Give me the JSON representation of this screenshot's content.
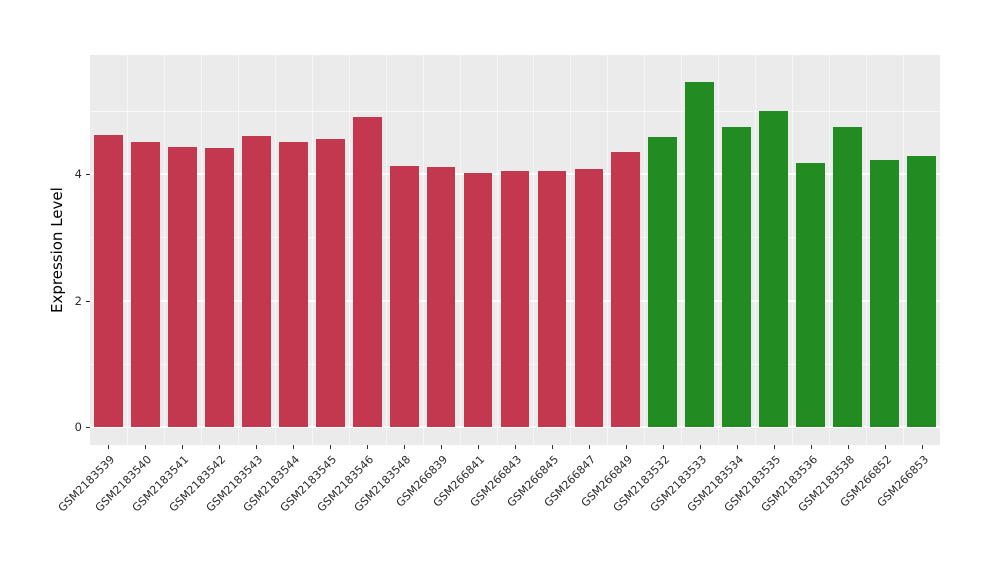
{
  "chart_data": {
    "type": "bar",
    "title": "",
    "xlabel": "",
    "ylabel": "Expression Level",
    "ylim": [
      0,
      5.6
    ],
    "yticks": [
      0,
      2,
      4
    ],
    "grid": true,
    "legend": "none",
    "categories": [
      "GSM2183539",
      "GSM2183540",
      "GSM2183541",
      "GSM2183542",
      "GSM2183543",
      "GSM2183544",
      "GSM2183545",
      "GSM2183546",
      "GSM2183548",
      "GSM266839",
      "GSM266841",
      "GSM266843",
      "GSM266845",
      "GSM266847",
      "GSM266849",
      "GSM2183532",
      "GSM2183533",
      "GSM2183534",
      "GSM2183535",
      "GSM2183536",
      "GSM2183538",
      "GSM266852",
      "GSM266853"
    ],
    "values": [
      4.62,
      4.5,
      4.42,
      4.41,
      4.6,
      4.51,
      4.56,
      4.9,
      4.12,
      4.11,
      4.02,
      4.05,
      4.05,
      4.08,
      4.35,
      4.58,
      5.45,
      4.75,
      5.0,
      4.18,
      4.75,
      4.22,
      4.28
    ],
    "groups": [
      "red",
      "red",
      "red",
      "red",
      "red",
      "red",
      "red",
      "red",
      "red",
      "red",
      "red",
      "red",
      "red",
      "red",
      "red",
      "green",
      "green",
      "green",
      "green",
      "green",
      "green",
      "green",
      "green"
    ],
    "palette": {
      "red": "#C4384F",
      "green": "#228B22",
      "panel_bg": "#EBEBEB",
      "gridline": "#FFFFFF",
      "tick": "#333333"
    }
  }
}
